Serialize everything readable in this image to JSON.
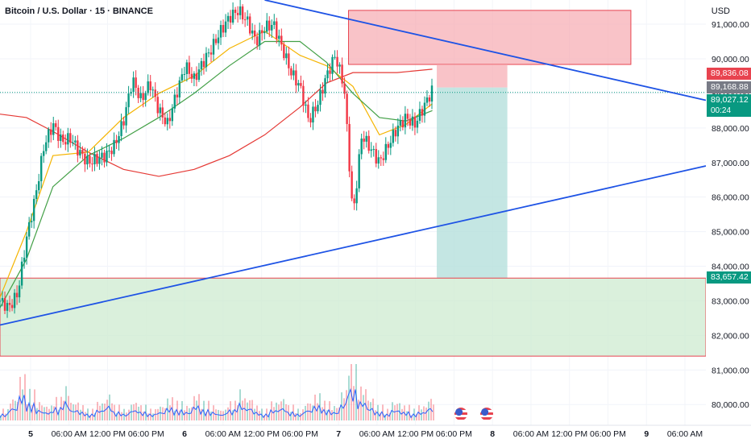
{
  "header": {
    "title": "Bitcoin / U.S. Dollar · 15 · BINANCE",
    "currency": "USD"
  },
  "price_labels": {
    "sl": "89,836.08",
    "entry": "89,168.88",
    "last": "89,027.12",
    "countdown": "00:24",
    "tp": "83,657.42"
  },
  "colors": {
    "up": "#089981",
    "down": "#f23645",
    "trendline": "#1e53e5",
    "ma_red": "#e53935",
    "ma_orange": "#f5b400",
    "ma_green": "#43a047",
    "volume_ma": "#2962ff",
    "zone_red": "#f7a9b0",
    "zone_green": "#cdebd0",
    "zone_teal": "#b5e0dc"
  },
  "chart_data": {
    "type": "candlestick",
    "title": "Bitcoin / U.S. Dollar · 15 · BINANCE",
    "y_ticks": [
      "91,000.00",
      "90,000.00",
      "89,000.00",
      "88,000.00",
      "87,000.00",
      "86,000.00",
      "85,000.00",
      "84,000.00",
      "83,000.00",
      "82,000.00",
      "81,000.00",
      "80,000.00"
    ],
    "x_ticks": [
      "5",
      "06:00 AM",
      "12:00 PM",
      "06:00 PM",
      "6",
      "06:00 AM",
      "12:00 PM",
      "06:00 PM",
      "7",
      "06:00 AM",
      "12:00 PM",
      "06:00 PM",
      "8",
      "06:00 AM",
      "12:00 PM",
      "06:00 PM",
      "9",
      "06:00 AM"
    ],
    "ylim": [
      79400,
      91700
    ],
    "price_path": [
      [
        0,
        83000
      ],
      [
        2,
        82800
      ],
      [
        4,
        83200
      ],
      [
        6,
        84800
      ],
      [
        8,
        86000
      ],
      [
        10,
        87500
      ],
      [
        12,
        88100
      ],
      [
        14,
        87600
      ],
      [
        16,
        87700
      ],
      [
        18,
        87300
      ],
      [
        20,
        87000
      ],
      [
        22,
        87100
      ],
      [
        24,
        87200
      ],
      [
        26,
        87500
      ],
      [
        28,
        88200
      ],
      [
        30,
        89400
      ],
      [
        32,
        88800
      ],
      [
        34,
        89300
      ],
      [
        36,
        88500
      ],
      [
        38,
        88100
      ],
      [
        40,
        89000
      ],
      [
        42,
        89800
      ],
      [
        44,
        89400
      ],
      [
        46,
        89900
      ],
      [
        48,
        90300
      ],
      [
        50,
        90800
      ],
      [
        52,
        91200
      ],
      [
        54,
        91400
      ],
      [
        56,
        91100
      ],
      [
        58,
        90500
      ],
      [
        60,
        90900
      ],
      [
        62,
        91000
      ],
      [
        64,
        90300
      ],
      [
        66,
        89600
      ],
      [
        68,
        89200
      ],
      [
        70,
        88200
      ],
      [
        72,
        88700
      ],
      [
        74,
        89500
      ],
      [
        76,
        90100
      ],
      [
        78,
        89200
      ],
      [
        80,
        85400
      ],
      [
        82,
        87800
      ],
      [
        84,
        87400
      ],
      [
        86,
        87000
      ],
      [
        88,
        87500
      ],
      [
        90,
        88000
      ],
      [
        92,
        88300
      ],
      [
        94,
        88100
      ],
      [
        96,
        88600
      ],
      [
        98,
        89100
      ]
    ],
    "ma_red": [
      [
        0,
        88400
      ],
      [
        6,
        88300
      ],
      [
        12,
        87900
      ],
      [
        20,
        87300
      ],
      [
        28,
        86800
      ],
      [
        36,
        86600
      ],
      [
        44,
        86800
      ],
      [
        52,
        87200
      ],
      [
        60,
        87800
      ],
      [
        68,
        88600
      ],
      [
        74,
        89300
      ],
      [
        80,
        89600
      ],
      [
        90,
        89600
      ],
      [
        98,
        89700
      ]
    ],
    "ma_orange": [
      [
        0,
        83100
      ],
      [
        6,
        85000
      ],
      [
        12,
        87200
      ],
      [
        20,
        87300
      ],
      [
        28,
        88300
      ],
      [
        36,
        89000
      ],
      [
        44,
        89500
      ],
      [
        52,
        90300
      ],
      [
        60,
        90800
      ],
      [
        68,
        90100
      ],
      [
        74,
        89800
      ],
      [
        80,
        89200
      ],
      [
        86,
        87800
      ],
      [
        92,
        88100
      ],
      [
        98,
        88700
      ]
    ],
    "ma_green": [
      [
        0,
        82800
      ],
      [
        6,
        84200
      ],
      [
        12,
        86300
      ],
      [
        20,
        87200
      ],
      [
        28,
        87700
      ],
      [
        36,
        88300
      ],
      [
        44,
        89000
      ],
      [
        52,
        89800
      ],
      [
        60,
        90500
      ],
      [
        68,
        90500
      ],
      [
        74,
        89900
      ],
      [
        80,
        89000
      ],
      [
        86,
        88300
      ],
      [
        92,
        88200
      ],
      [
        98,
        88500
      ]
    ],
    "trendlines": [
      {
        "from": [
          60,
          91700
        ],
        "to": [
          160,
          88800
        ]
      },
      {
        "from": [
          0,
          82300
        ],
        "to": [
          160,
          86900
        ]
      }
    ],
    "zones": [
      {
        "name": "supply",
        "y": [
          89836,
          91400
        ],
        "x": [
          79,
          143
        ]
      },
      {
        "name": "stop",
        "y": [
          89169,
          89836
        ],
        "x": [
          99,
          115
        ]
      },
      {
        "name": "target",
        "y": [
          83657,
          89169
        ],
        "x": [
          99,
          115
        ]
      },
      {
        "name": "demand",
        "y": [
          81400,
          83657
        ],
        "x": [
          0,
          160
        ]
      }
    ],
    "volume_profile": [
      3,
      6,
      12,
      8,
      5,
      4,
      6,
      9,
      5,
      4,
      3,
      5,
      7,
      4,
      3,
      5,
      4,
      3,
      4,
      6,
      5,
      4,
      7,
      5,
      4,
      3,
      5,
      8,
      6,
      4,
      3,
      5,
      6,
      4,
      3,
      5,
      7,
      5,
      4,
      8,
      20,
      9,
      6,
      4,
      3,
      5,
      4,
      3,
      4,
      6
    ]
  }
}
